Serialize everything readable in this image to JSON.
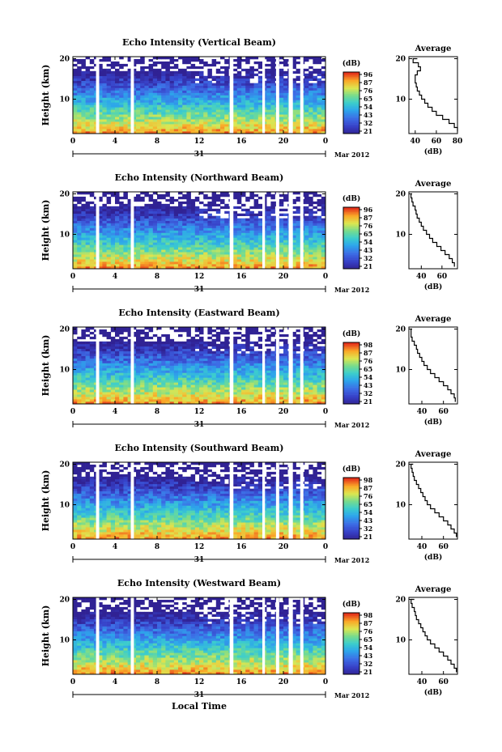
{
  "chart_data": [
    {
      "type": "heatmap",
      "title": "Echo Intensity (Vertical Beam)",
      "ylabel": "Height (km)",
      "xlabel": "",
      "x_ticks": [
        "0",
        "4",
        "8",
        "12",
        "16",
        "20",
        "0"
      ],
      "y_ticks": [
        "10",
        "20"
      ],
      "xlim": [
        0,
        24
      ],
      "ylim": [
        1.5,
        20.5
      ],
      "date_day": "31",
      "date_label": "Mar 2012",
      "colorbar": {
        "label": "(dB)",
        "ticks": [
          "96",
          "87",
          "76",
          "65",
          "54",
          "43",
          "32",
          "21"
        ]
      },
      "data_gaps_hours": [
        [
          2.2,
          2.5
        ],
        [
          5.5,
          5.8
        ],
        [
          14.9,
          15.25
        ],
        [
          18.0,
          18.25
        ],
        [
          19.3,
          19.6
        ],
        [
          20.5,
          20.9
        ],
        [
          21.6,
          21.9
        ]
      ],
      "average": {
        "title": "Average",
        "xlabel": "(dB)",
        "x_ticks": [
          "40",
          "60",
          "80"
        ],
        "xlim": [
          34,
          80
        ],
        "y_ticks": [
          "10",
          "20"
        ],
        "height_km": [
          2,
          3,
          4,
          5,
          6,
          7,
          8,
          9,
          10,
          11,
          12,
          13,
          14,
          15,
          16,
          17,
          18,
          19,
          20
        ],
        "value_db": [
          80,
          77,
          72,
          66,
          60,
          56,
          52,
          49,
          46,
          44,
          42,
          41,
          40,
          40,
          42,
          45,
          43,
          38,
          42
        ]
      }
    },
    {
      "type": "heatmap",
      "title": "Echo Intensity (Northward Beam)",
      "ylabel": "Height (km)",
      "xlabel": "",
      "x_ticks": [
        "0",
        "4",
        "8",
        "12",
        "16",
        "20",
        "0"
      ],
      "y_ticks": [
        "10",
        "20"
      ],
      "xlim": [
        0,
        24
      ],
      "ylim": [
        1.5,
        20.5
      ],
      "date_day": "31",
      "date_label": "Mar 2012",
      "colorbar": {
        "label": "(dB)",
        "ticks": [
          "96",
          "87",
          "76",
          "65",
          "54",
          "43",
          "32",
          "21"
        ]
      },
      "data_gaps_hours": [
        [
          2.2,
          2.5
        ],
        [
          5.5,
          5.8
        ],
        [
          14.9,
          15.25
        ],
        [
          18.0,
          18.25
        ],
        [
          19.3,
          19.6
        ],
        [
          20.5,
          20.9
        ],
        [
          21.6,
          21.9
        ]
      ],
      "average": {
        "title": "Average",
        "xlabel": "(dB)",
        "x_ticks": [
          "40",
          "60"
        ],
        "xlim": [
          28,
          75
        ],
        "y_ticks": [
          "10",
          "20"
        ],
        "height_km": [
          2,
          3,
          4,
          5,
          6,
          7,
          8,
          9,
          10,
          11,
          12,
          13,
          14,
          15,
          16,
          17,
          18,
          19,
          20
        ],
        "value_db": [
          72,
          70,
          67,
          63,
          59,
          55,
          51,
          48,
          45,
          42,
          40,
          38,
          36,
          35,
          34,
          32,
          31,
          30,
          31
        ]
      }
    },
    {
      "type": "heatmap",
      "title": "Echo Intensity (Eastward Beam)",
      "ylabel": "Height (km)",
      "xlabel": "",
      "x_ticks": [
        "0",
        "4",
        "8",
        "12",
        "16",
        "20",
        "0"
      ],
      "y_ticks": [
        "10",
        "20"
      ],
      "xlim": [
        0,
        24
      ],
      "ylim": [
        1.5,
        20.5
      ],
      "date_day": "31",
      "date_label": "Mar 2012",
      "colorbar": {
        "label": "(dB)",
        "ticks": [
          "98",
          "87",
          "76",
          "65",
          "54",
          "43",
          "32",
          "21"
        ]
      },
      "data_gaps_hours": [
        [
          2.2,
          2.5
        ],
        [
          5.5,
          5.8
        ],
        [
          14.9,
          15.25
        ],
        [
          18.0,
          18.25
        ],
        [
          19.3,
          19.6
        ],
        [
          20.5,
          20.9
        ],
        [
          21.6,
          21.9
        ]
      ],
      "average": {
        "title": "Average",
        "xlabel": "(dB)",
        "x_ticks": [
          "40",
          "60"
        ],
        "xlim": [
          28,
          73
        ],
        "y_ticks": [
          "10",
          "20"
        ],
        "height_km": [
          2,
          3,
          4,
          5,
          6,
          7,
          8,
          9,
          10,
          11,
          12,
          13,
          14,
          15,
          16,
          17,
          18,
          19,
          20
        ],
        "value_db": [
          71,
          70,
          67,
          64,
          60,
          56,
          52,
          48,
          45,
          42,
          40,
          38,
          36,
          35,
          33,
          31,
          30,
          30,
          31
        ]
      }
    },
    {
      "type": "heatmap",
      "title": "Echo Intensity (Southward Beam)",
      "ylabel": "Height (km)",
      "xlabel": "",
      "x_ticks": [
        "0",
        "4",
        "8",
        "12",
        "16",
        "20",
        "0"
      ],
      "y_ticks": [
        "10",
        "20"
      ],
      "xlim": [
        0,
        24
      ],
      "ylim": [
        1.5,
        20.5
      ],
      "date_day": "31",
      "date_label": "Mar 2012",
      "colorbar": {
        "label": "(dB)",
        "ticks": [
          "98",
          "87",
          "76",
          "65",
          "54",
          "43",
          "32",
          "21"
        ]
      },
      "data_gaps_hours": [
        [
          2.2,
          2.5
        ],
        [
          5.5,
          5.8
        ],
        [
          14.9,
          15.25
        ],
        [
          18.0,
          18.25
        ],
        [
          19.3,
          19.6
        ],
        [
          20.5,
          20.9
        ],
        [
          21.6,
          21.9
        ]
      ],
      "average": {
        "title": "Average",
        "xlabel": "(dB)",
        "x_ticks": [
          "40",
          "60"
        ],
        "xlim": [
          28,
          73
        ],
        "y_ticks": [
          "10",
          "20"
        ],
        "height_km": [
          2,
          3,
          4,
          5,
          6,
          7,
          8,
          9,
          10,
          11,
          12,
          13,
          14,
          15,
          16,
          17,
          18,
          19,
          20
        ],
        "value_db": [
          72,
          70,
          67,
          64,
          60,
          56,
          52,
          48,
          45,
          43,
          41,
          39,
          37,
          35,
          33,
          32,
          31,
          30,
          32
        ]
      }
    },
    {
      "type": "heatmap",
      "title": "Echo Intensity (Westward Beam)",
      "ylabel": "Height (km)",
      "xlabel": "Local Time",
      "x_ticks": [
        "0",
        "4",
        "8",
        "12",
        "16",
        "20",
        "0"
      ],
      "y_ticks": [
        "10",
        "20"
      ],
      "xlim": [
        0,
        24
      ],
      "ylim": [
        1.5,
        20.5
      ],
      "date_day": "31",
      "date_label": "Mar 2012",
      "colorbar": {
        "label": "(dB)",
        "ticks": [
          "98",
          "87",
          "76",
          "65",
          "54",
          "43",
          "32",
          "21"
        ]
      },
      "data_gaps_hours": [
        [
          2.2,
          2.5
        ],
        [
          5.5,
          5.8
        ],
        [
          14.9,
          15.25
        ],
        [
          18.0,
          18.25
        ],
        [
          19.3,
          19.6
        ],
        [
          20.5,
          20.9
        ],
        [
          21.6,
          21.9
        ]
      ],
      "average": {
        "title": "Average",
        "xlabel": "(dB)",
        "x_ticks": [
          "40",
          "60"
        ],
        "xlim": [
          28,
          73
        ],
        "y_ticks": [
          "10",
          "20"
        ],
        "height_km": [
          2,
          3,
          4,
          5,
          6,
          7,
          8,
          9,
          10,
          11,
          12,
          13,
          14,
          15,
          16,
          17,
          18,
          19,
          20
        ],
        "value_db": [
          72,
          70,
          67,
          64,
          60,
          56,
          52,
          48,
          45,
          43,
          41,
          39,
          37,
          35,
          34,
          33,
          31,
          30,
          33
        ]
      }
    }
  ]
}
